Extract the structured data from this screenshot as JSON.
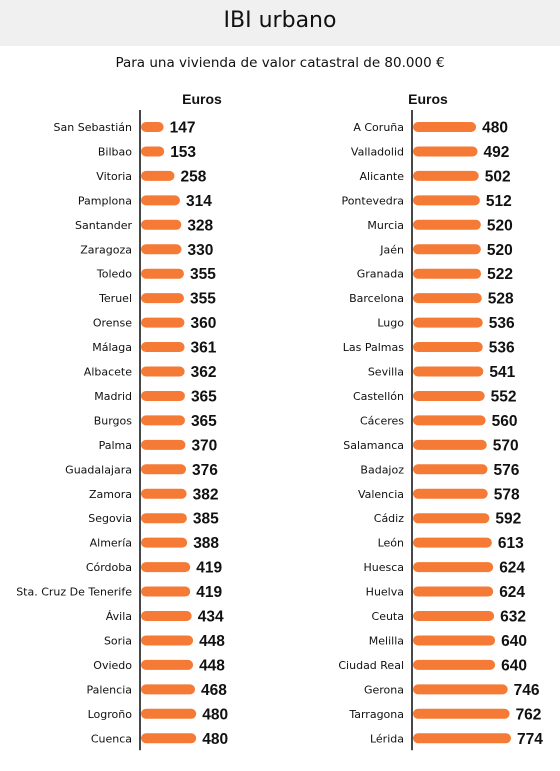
{
  "title": "IBI urbano",
  "subtitle": "Para una vivienda de valor catastral de 80.000 €",
  "colors": {
    "bar": "#f47a36",
    "axis": "#1a1a1a",
    "title_band": "#f0f0f0"
  },
  "chart_data": [
    {
      "type": "bar",
      "orientation": "horizontal",
      "unit_label": "Euros",
      "xlim": [
        0,
        774
      ],
      "categories": [
        "San Sebastián",
        "Bilbao",
        "Vitoria",
        "Pamplona",
        "Santander",
        "Zaragoza",
        "Toledo",
        "Teruel",
        "Orense",
        "Málaga",
        "Albacete",
        "Madrid",
        "Burgos",
        "Palma",
        "Guadalajara",
        "Zamora",
        "Segovia",
        "Almería",
        "Córdoba",
        "Sta. Cruz De Tenerife",
        "Ávila",
        "Soria",
        "Oviedo",
        "Palencia",
        "Logroño",
        "Cuenca"
      ],
      "values": [
        147,
        153,
        258,
        314,
        328,
        330,
        355,
        355,
        360,
        361,
        362,
        365,
        365,
        370,
        376,
        382,
        385,
        388,
        419,
        419,
        434,
        448,
        448,
        468,
        480,
        480
      ]
    },
    {
      "type": "bar",
      "orientation": "horizontal",
      "unit_label": "Euros",
      "xlim": [
        0,
        774
      ],
      "categories": [
        "A Coruña",
        "Valladolid",
        "Alicante",
        "Pontevedra",
        "Murcia",
        "Jaén",
        "Granada",
        "Barcelona",
        "Lugo",
        "Las Palmas",
        "Sevilla",
        "Castellón",
        "Cáceres",
        "Salamanca",
        "Badajoz",
        "Valencia",
        "Cádiz",
        "León",
        "Huesca",
        "Huelva",
        "Ceuta",
        "Melilla",
        "Ciudad Real",
        "Gerona",
        "Tarragona",
        "Lérida"
      ],
      "values": [
        480,
        492,
        502,
        512,
        520,
        520,
        522,
        528,
        536,
        536,
        541,
        552,
        560,
        570,
        576,
        578,
        592,
        613,
        624,
        624,
        632,
        640,
        640,
        746,
        762,
        774
      ]
    }
  ]
}
